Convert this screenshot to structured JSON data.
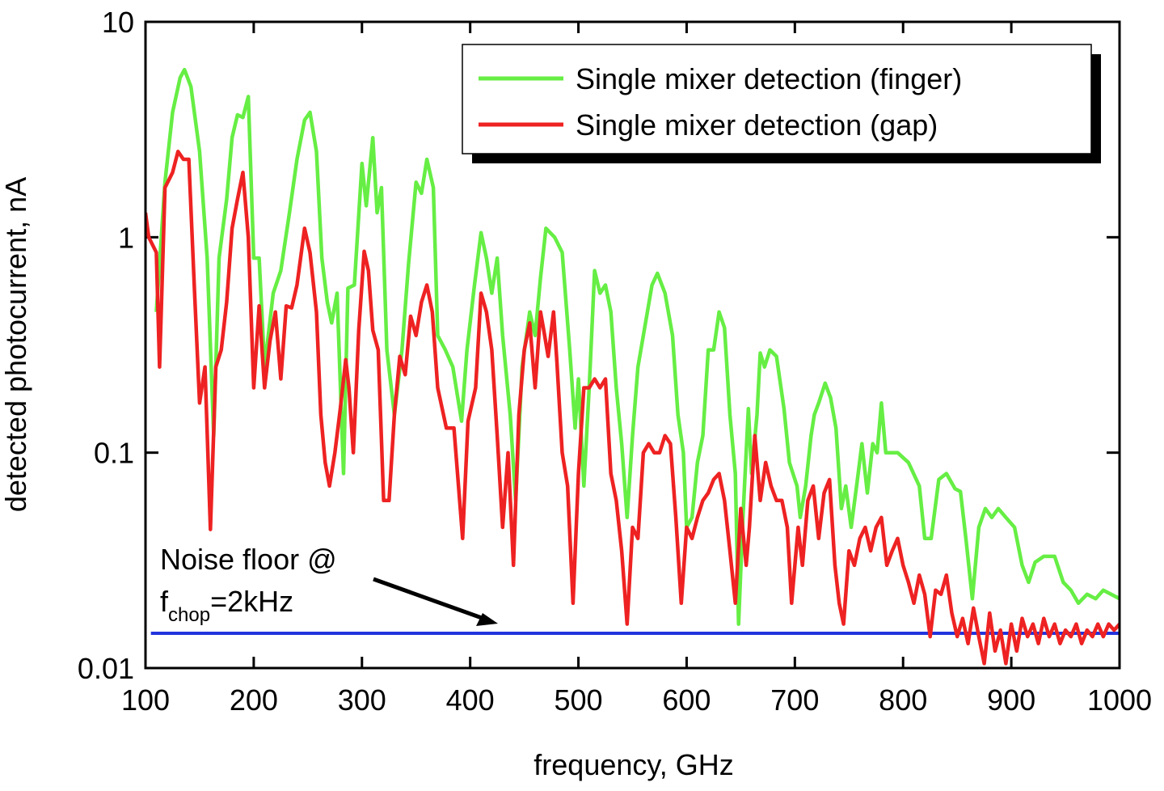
{
  "chart_data": {
    "type": "line",
    "xlabel": "frequency, GHz",
    "ylabel": "detected photocurrent, nA",
    "xlim": [
      100,
      1000
    ],
    "xticks": [
      100,
      200,
      300,
      400,
      500,
      600,
      700,
      800,
      900,
      1000
    ],
    "ylim": [
      0.01,
      10
    ],
    "yticks": [
      0.01,
      0.1,
      1,
      10
    ],
    "yscale": "log",
    "legend": "upper right",
    "series": [
      {
        "name": "Single mixer detection (finger)",
        "color": "#66ee44",
        "x": [
          110,
          118,
          125,
          132,
          136,
          142,
          150,
          157,
          163,
          168,
          175,
          180,
          185,
          190,
          195,
          200,
          205,
          210,
          218,
          225,
          233,
          240,
          247,
          252,
          258,
          263,
          268,
          272,
          277,
          283,
          287,
          293,
          300,
          304,
          310,
          314,
          318,
          323,
          330,
          337,
          343,
          350,
          355,
          360,
          366,
          370,
          377,
          384,
          392,
          397,
          404,
          410,
          415,
          420,
          425,
          430,
          437,
          442,
          448,
          455,
          460,
          465,
          470,
          478,
          485,
          492,
          497,
          500,
          505,
          510,
          515,
          520,
          525,
          530,
          535,
          540,
          545,
          550,
          555,
          560,
          568,
          573,
          580,
          587,
          592,
          597,
          600,
          605,
          610,
          615,
          620,
          625,
          630,
          635,
          640,
          645,
          648,
          652,
          657,
          660,
          665,
          668,
          672,
          677,
          683,
          690,
          695,
          702,
          705,
          710,
          715,
          718,
          722,
          728,
          733,
          738,
          743,
          747,
          752,
          757,
          762,
          767,
          772,
          776,
          780,
          784,
          795,
          805,
          815,
          820,
          826,
          833,
          840,
          848,
          853,
          858,
          864,
          870,
          876,
          882,
          888,
          895,
          903,
          910,
          916,
          922,
          930,
          940,
          948,
          955,
          962,
          970,
          978,
          985,
          1000
        ],
        "values": [
          0.45,
          1.8,
          3.8,
          5.5,
          6.0,
          5.0,
          2.5,
          0.8,
          0.12,
          0.8,
          1.5,
          2.9,
          3.7,
          3.6,
          4.5,
          0.8,
          0.8,
          0.25,
          0.55,
          0.7,
          1.3,
          2.3,
          3.5,
          3.8,
          2.5,
          0.8,
          0.5,
          0.4,
          0.55,
          0.08,
          0.58,
          0.6,
          2.2,
          1.4,
          2.9,
          1.3,
          1.7,
          0.3,
          0.15,
          0.3,
          0.75,
          1.8,
          1.6,
          2.3,
          1.7,
          0.35,
          0.3,
          0.25,
          0.14,
          0.3,
          0.6,
          1.05,
          0.8,
          0.55,
          0.8,
          0.35,
          0.15,
          0.06,
          0.25,
          0.45,
          0.35,
          0.65,
          1.1,
          1.0,
          0.85,
          0.3,
          0.13,
          0.22,
          0.07,
          0.2,
          0.7,
          0.55,
          0.6,
          0.45,
          0.2,
          0.11,
          0.05,
          0.12,
          0.25,
          0.35,
          0.6,
          0.68,
          0.55,
          0.35,
          0.15,
          0.1,
          0.045,
          0.05,
          0.09,
          0.12,
          0.3,
          0.3,
          0.45,
          0.38,
          0.15,
          0.08,
          0.016,
          0.05,
          0.16,
          0.08,
          0.15,
          0.29,
          0.25,
          0.3,
          0.28,
          0.16,
          0.09,
          0.07,
          0.05,
          0.07,
          0.12,
          0.15,
          0.17,
          0.21,
          0.18,
          0.13,
          0.055,
          0.07,
          0.045,
          0.07,
          0.11,
          0.065,
          0.11,
          0.1,
          0.17,
          0.1,
          0.1,
          0.09,
          0.07,
          0.04,
          0.04,
          0.075,
          0.08,
          0.068,
          0.066,
          0.04,
          0.021,
          0.045,
          0.055,
          0.05,
          0.055,
          0.05,
          0.045,
          0.03,
          0.025,
          0.031,
          0.033,
          0.033,
          0.025,
          0.023,
          0.02,
          0.022,
          0.021,
          0.023,
          0.021
        ]
      },
      {
        "name": "Single mixer detection (gap)",
        "color": "#ee2222",
        "x": [
          100,
          103,
          110,
          113,
          118,
          125,
          130,
          135,
          140,
          145,
          150,
          155,
          160,
          165,
          170,
          175,
          180,
          185,
          190,
          195,
          200,
          205,
          210,
          215,
          220,
          225,
          230,
          235,
          240,
          247,
          252,
          258,
          262,
          266,
          270,
          275,
          280,
          285,
          288,
          292,
          297,
          302,
          306,
          310,
          315,
          320,
          325,
          330,
          335,
          340,
          345,
          350,
          355,
          360,
          365,
          370,
          378,
          385,
          393,
          398,
          405,
          410,
          415,
          420,
          425,
          430,
          435,
          440,
          445,
          450,
          455,
          460,
          465,
          468,
          472,
          477,
          480,
          485,
          490,
          495,
          500,
          505,
          510,
          515,
          520,
          525,
          530,
          535,
          540,
          545,
          550,
          555,
          560,
          565,
          570,
          575,
          580,
          585,
          590,
          595,
          600,
          605,
          610,
          615,
          620,
          625,
          630,
          635,
          640,
          645,
          650,
          655,
          658,
          663,
          668,
          673,
          678,
          683,
          688,
          693,
          697,
          703,
          707,
          712,
          717,
          722,
          727,
          732,
          737,
          741,
          745,
          750,
          755,
          760,
          765,
          770,
          775,
          780,
          785,
          790,
          795,
          800,
          805,
          810,
          815,
          820,
          825,
          830,
          835,
          840,
          845,
          850,
          855,
          860,
          865,
          870,
          875,
          880,
          885,
          890,
          895,
          900,
          905,
          910,
          915,
          920,
          925,
          930,
          935,
          940,
          945,
          950,
          955,
          960,
          965,
          970,
          975,
          980,
          985,
          990,
          995,
          1000
        ],
        "values": [
          1.3,
          1.0,
          0.85,
          0.25,
          1.7,
          2.0,
          2.5,
          2.3,
          2.3,
          0.6,
          0.17,
          0.25,
          0.044,
          0.25,
          0.3,
          0.5,
          1.1,
          1.5,
          2.0,
          1.0,
          0.2,
          0.48,
          0.2,
          0.33,
          0.45,
          0.22,
          0.48,
          0.47,
          0.6,
          1.1,
          0.85,
          0.45,
          0.15,
          0.09,
          0.07,
          0.1,
          0.16,
          0.27,
          0.2,
          0.1,
          0.37,
          0.86,
          0.7,
          0.37,
          0.3,
          0.06,
          0.06,
          0.15,
          0.28,
          0.23,
          0.43,
          0.35,
          0.5,
          0.6,
          0.45,
          0.2,
          0.13,
          0.13,
          0.04,
          0.14,
          0.2,
          0.55,
          0.45,
          0.3,
          0.12,
          0.045,
          0.1,
          0.03,
          0.15,
          0.3,
          0.4,
          0.2,
          0.45,
          0.37,
          0.28,
          0.45,
          0.27,
          0.1,
          0.07,
          0.02,
          0.08,
          0.2,
          0.2,
          0.22,
          0.2,
          0.22,
          0.08,
          0.06,
          0.035,
          0.016,
          0.045,
          0.04,
          0.1,
          0.11,
          0.1,
          0.1,
          0.12,
          0.11,
          0.05,
          0.02,
          0.045,
          0.04,
          0.05,
          0.06,
          0.065,
          0.075,
          0.08,
          0.06,
          0.035,
          0.02,
          0.055,
          0.03,
          0.045,
          0.12,
          0.06,
          0.09,
          0.07,
          0.06,
          0.06,
          0.045,
          0.02,
          0.045,
          0.03,
          0.06,
          0.07,
          0.04,
          0.065,
          0.075,
          0.03,
          0.02,
          0.016,
          0.035,
          0.03,
          0.04,
          0.045,
          0.035,
          0.045,
          0.05,
          0.03,
          0.035,
          0.04,
          0.03,
          0.025,
          0.02,
          0.027,
          0.022,
          0.014,
          0.023,
          0.022,
          0.027,
          0.018,
          0.014,
          0.017,
          0.013,
          0.019,
          0.014,
          0.0105,
          0.018,
          0.012,
          0.015,
          0.0105,
          0.016,
          0.012,
          0.017,
          0.014,
          0.016,
          0.013,
          0.017,
          0.014,
          0.016,
          0.013,
          0.015,
          0.014,
          0.016,
          0.013,
          0.015,
          0.014,
          0.016,
          0.014,
          0.016,
          0.015,
          0.016
        ]
      }
    ],
    "noise_floor": {
      "value": 0.0145,
      "x": [
        105,
        1000
      ],
      "color": "#2233dd"
    },
    "annotation": {
      "text": "Noise floor @",
      "f": "f",
      "subscript": "chop",
      "rest": "=2kHz"
    }
  }
}
